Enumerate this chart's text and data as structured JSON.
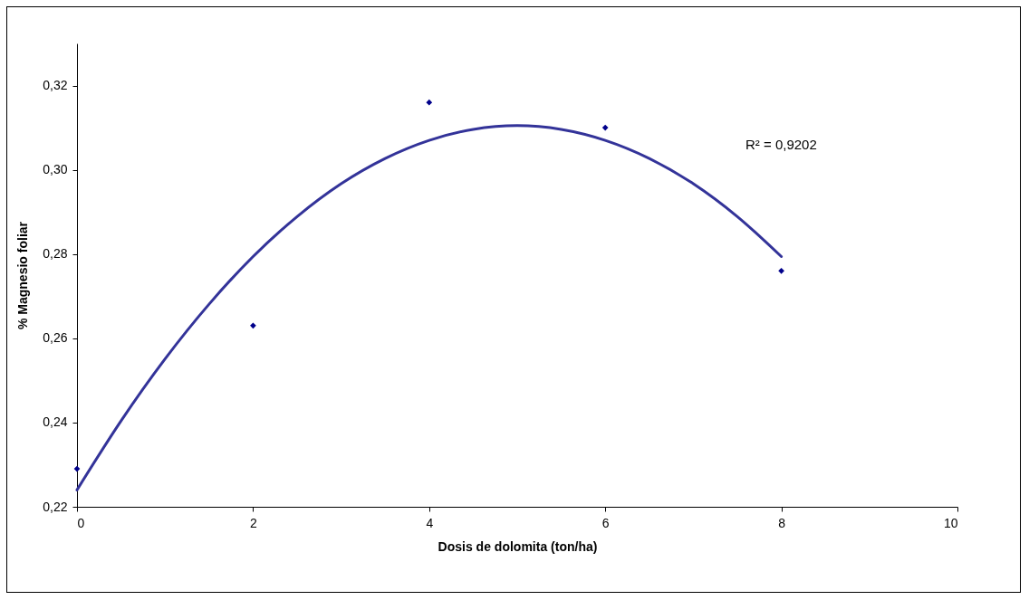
{
  "chart_data": {
    "type": "scatter",
    "xlabel": "Dosis de dolomita (ton/ha)",
    "ylabel": "% Magnesio foliar",
    "x": [
      0,
      2,
      4,
      6,
      8
    ],
    "series": [
      {
        "color": "#00008b",
        "marker": "diamond",
        "values": [
          0.229,
          0.263,
          0.316,
          0.31,
          0.276
        ]
      },
      {
        "type": "line",
        "color": "#333399",
        "x": [
          0,
          0.5,
          1,
          1.5,
          2,
          2.5,
          3,
          3.5,
          4,
          4.5,
          5,
          5.5,
          6,
          6.5,
          7,
          7.5,
          8
        ],
        "values": [
          0.224,
          0.2404,
          0.2551,
          0.2681,
          0.2794,
          0.2889,
          0.2967,
          0.3027,
          0.307,
          0.3096,
          0.3105,
          0.3096,
          0.307,
          0.3027,
          0.2967,
          0.2889,
          0.2794
        ]
      }
    ],
    "annotations": [
      "R² = 0,9202"
    ],
    "xlim": [
      0,
      10
    ],
    "xticks": [
      0,
      2,
      4,
      6,
      8,
      10
    ],
    "ylim": [
      0.22,
      0.33
    ],
    "yticks": [
      {
        "value": 0.22,
        "label": "0,22"
      },
      {
        "value": 0.24,
        "label": "0,24"
      },
      {
        "value": 0.26,
        "label": "0,26"
      },
      {
        "value": 0.28,
        "label": "0,28"
      },
      {
        "value": 0.3,
        "label": "0,30"
      },
      {
        "value": 0.32,
        "label": "0,32"
      }
    ],
    "grid": false
  }
}
